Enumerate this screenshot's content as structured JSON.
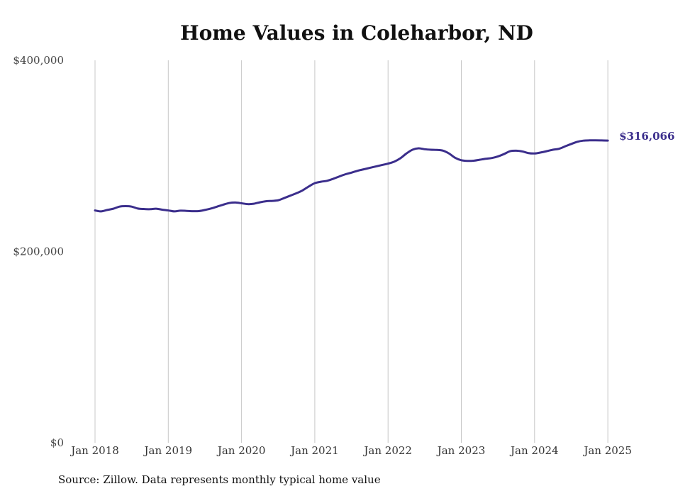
{
  "chart_data": {
    "type": "line",
    "title": "Home Values in Coleharbor, ND",
    "source": "Source: Zillow. Data represents monthly typical home value",
    "ylim": [
      0,
      400000
    ],
    "y_ticks": [
      0,
      200000,
      400000
    ],
    "y_tick_labels": [
      "$0",
      "$200,000",
      "$400,000"
    ],
    "x_ticks": [
      2018,
      2019,
      2020,
      2021,
      2022,
      2023,
      2024,
      2025
    ],
    "x_tick_labels": [
      "Jan 2018",
      "Jan 2019",
      "Jan 2020",
      "Jan 2021",
      "Jan 2022",
      "Jan 2023",
      "Jan 2024",
      "Jan 2025"
    ],
    "grid": "vertical",
    "line_color": "#3b2e8c",
    "end_label": "$316,066",
    "series": [
      {
        "points": [
          [
            "2018-01",
            243000
          ],
          [
            "2018-02",
            242000
          ],
          [
            "2018-03",
            243500
          ],
          [
            "2018-04",
            244800
          ],
          [
            "2018-05",
            247000
          ],
          [
            "2018-06",
            247500
          ],
          [
            "2018-07",
            247000
          ],
          [
            "2018-08",
            245000
          ],
          [
            "2018-09",
            244500
          ],
          [
            "2018-10",
            244300
          ],
          [
            "2018-11",
            244800
          ],
          [
            "2018-12",
            243800
          ],
          [
            "2019-01",
            243000
          ],
          [
            "2019-02",
            242000
          ],
          [
            "2019-03",
            242800
          ],
          [
            "2019-04",
            242500
          ],
          [
            "2019-05",
            242200
          ],
          [
            "2019-06",
            242300
          ],
          [
            "2019-07",
            243500
          ],
          [
            "2019-08",
            245000
          ],
          [
            "2019-09",
            247000
          ],
          [
            "2019-10",
            249000
          ],
          [
            "2019-11",
            250800
          ],
          [
            "2019-12",
            251300
          ],
          [
            "2020-01",
            250500
          ],
          [
            "2020-02",
            249600
          ],
          [
            "2020-03",
            250000
          ],
          [
            "2020-04",
            251500
          ],
          [
            "2020-05",
            252600
          ],
          [
            "2020-06",
            253000
          ],
          [
            "2020-07",
            253600
          ],
          [
            "2020-08",
            256000
          ],
          [
            "2020-09",
            258500
          ],
          [
            "2020-10",
            261000
          ],
          [
            "2020-11",
            264000
          ],
          [
            "2020-12",
            268000
          ],
          [
            "2021-01",
            271500
          ],
          [
            "2021-02",
            273000
          ],
          [
            "2021-03",
            274000
          ],
          [
            "2021-04",
            276000
          ],
          [
            "2021-05",
            278500
          ],
          [
            "2021-06",
            280800
          ],
          [
            "2021-07",
            282500
          ],
          [
            "2021-08",
            284500
          ],
          [
            "2021-09",
            286000
          ],
          [
            "2021-10",
            287500
          ],
          [
            "2021-11",
            289000
          ],
          [
            "2021-12",
            290500
          ],
          [
            "2022-01",
            292000
          ],
          [
            "2022-02",
            294000
          ],
          [
            "2022-03",
            297500
          ],
          [
            "2022-04",
            302500
          ],
          [
            "2022-05",
            306500
          ],
          [
            "2022-06",
            308000
          ],
          [
            "2022-07",
            307000
          ],
          [
            "2022-08",
            306500
          ],
          [
            "2022-09",
            306300
          ],
          [
            "2022-10",
            305500
          ],
          [
            "2022-11",
            302500
          ],
          [
            "2022-12",
            298000
          ],
          [
            "2023-01",
            295500
          ],
          [
            "2023-02",
            294800
          ],
          [
            "2023-03",
            295000
          ],
          [
            "2023-04",
            296000
          ],
          [
            "2023-05",
            297000
          ],
          [
            "2023-06",
            297800
          ],
          [
            "2023-07",
            299500
          ],
          [
            "2023-08",
            302000
          ],
          [
            "2023-09",
            305000
          ],
          [
            "2023-10",
            305500
          ],
          [
            "2023-11",
            304700
          ],
          [
            "2023-12",
            303000
          ],
          [
            "2024-01",
            302600
          ],
          [
            "2024-02",
            303600
          ],
          [
            "2024-03",
            305000
          ],
          [
            "2024-04",
            306500
          ],
          [
            "2024-05",
            307500
          ],
          [
            "2024-06",
            310000
          ],
          [
            "2024-07",
            312500
          ],
          [
            "2024-08",
            314800
          ],
          [
            "2024-09",
            316000
          ],
          [
            "2024-10",
            316300
          ],
          [
            "2024-11",
            316300
          ],
          [
            "2024-12",
            316200
          ],
          [
            "2025-01",
            316066
          ]
        ]
      }
    ]
  }
}
